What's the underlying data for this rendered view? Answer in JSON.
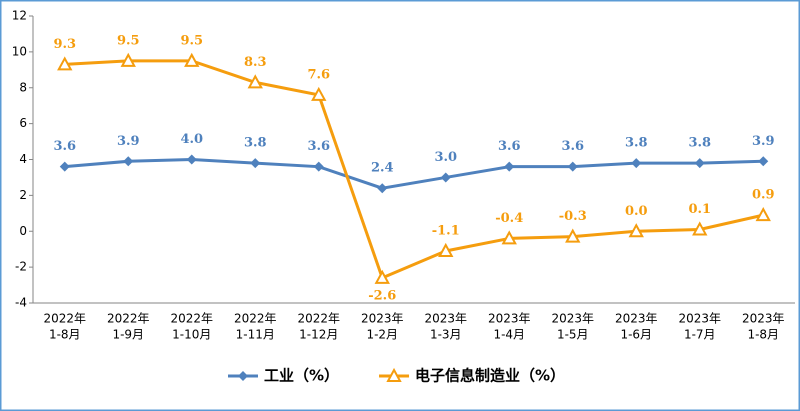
{
  "chart_data": {
    "type": "line",
    "categories": [
      [
        "2022年",
        "1-8月"
      ],
      [
        "2022年",
        "1-9月"
      ],
      [
        "2022年",
        "1-10月"
      ],
      [
        "2022年",
        "1-11月"
      ],
      [
        "2022年",
        "1-12月"
      ],
      [
        "2023年",
        "1-2月"
      ],
      [
        "2023年",
        "1-3月"
      ],
      [
        "2023年",
        "1-4月"
      ],
      [
        "2023年",
        "1-5月"
      ],
      [
        "2023年",
        "1-6月"
      ],
      [
        "2023年",
        "1-7月"
      ],
      [
        "2023年",
        "1-8月"
      ]
    ],
    "series": [
      {
        "name": "工业（%）",
        "color": "#4f81bd",
        "marker": "diamond",
        "values": [
          3.6,
          3.9,
          4.0,
          3.8,
          3.6,
          2.4,
          3.0,
          3.6,
          3.6,
          3.8,
          3.8,
          3.9
        ],
        "value_labels": [
          "3.6",
          "3.9",
          "4.0",
          "3.8",
          "3.6",
          "2.4",
          "3.0",
          "3.6",
          "3.6",
          "3.8",
          "3.8",
          "3.9"
        ]
      },
      {
        "name": "电子信息制造业（%）",
        "color": "#f59d0e",
        "marker": "triangle",
        "values": [
          9.3,
          9.5,
          9.5,
          8.3,
          7.6,
          -2.6,
          -1.1,
          -0.4,
          -0.3,
          0.0,
          0.1,
          0.9
        ],
        "value_labels": [
          "9.3",
          "9.5",
          "9.5",
          "8.3",
          "7.6",
          "-2.6",
          "-1.1",
          "-0.4",
          "-0.3",
          "0.0",
          "0.1",
          "0.9"
        ]
      }
    ],
    "ylim": [
      -4,
      12
    ],
    "yticks": [
      -4,
      -2,
      0,
      2,
      4,
      6,
      8,
      10,
      12
    ],
    "grid": false,
    "legend": "bottom"
  }
}
